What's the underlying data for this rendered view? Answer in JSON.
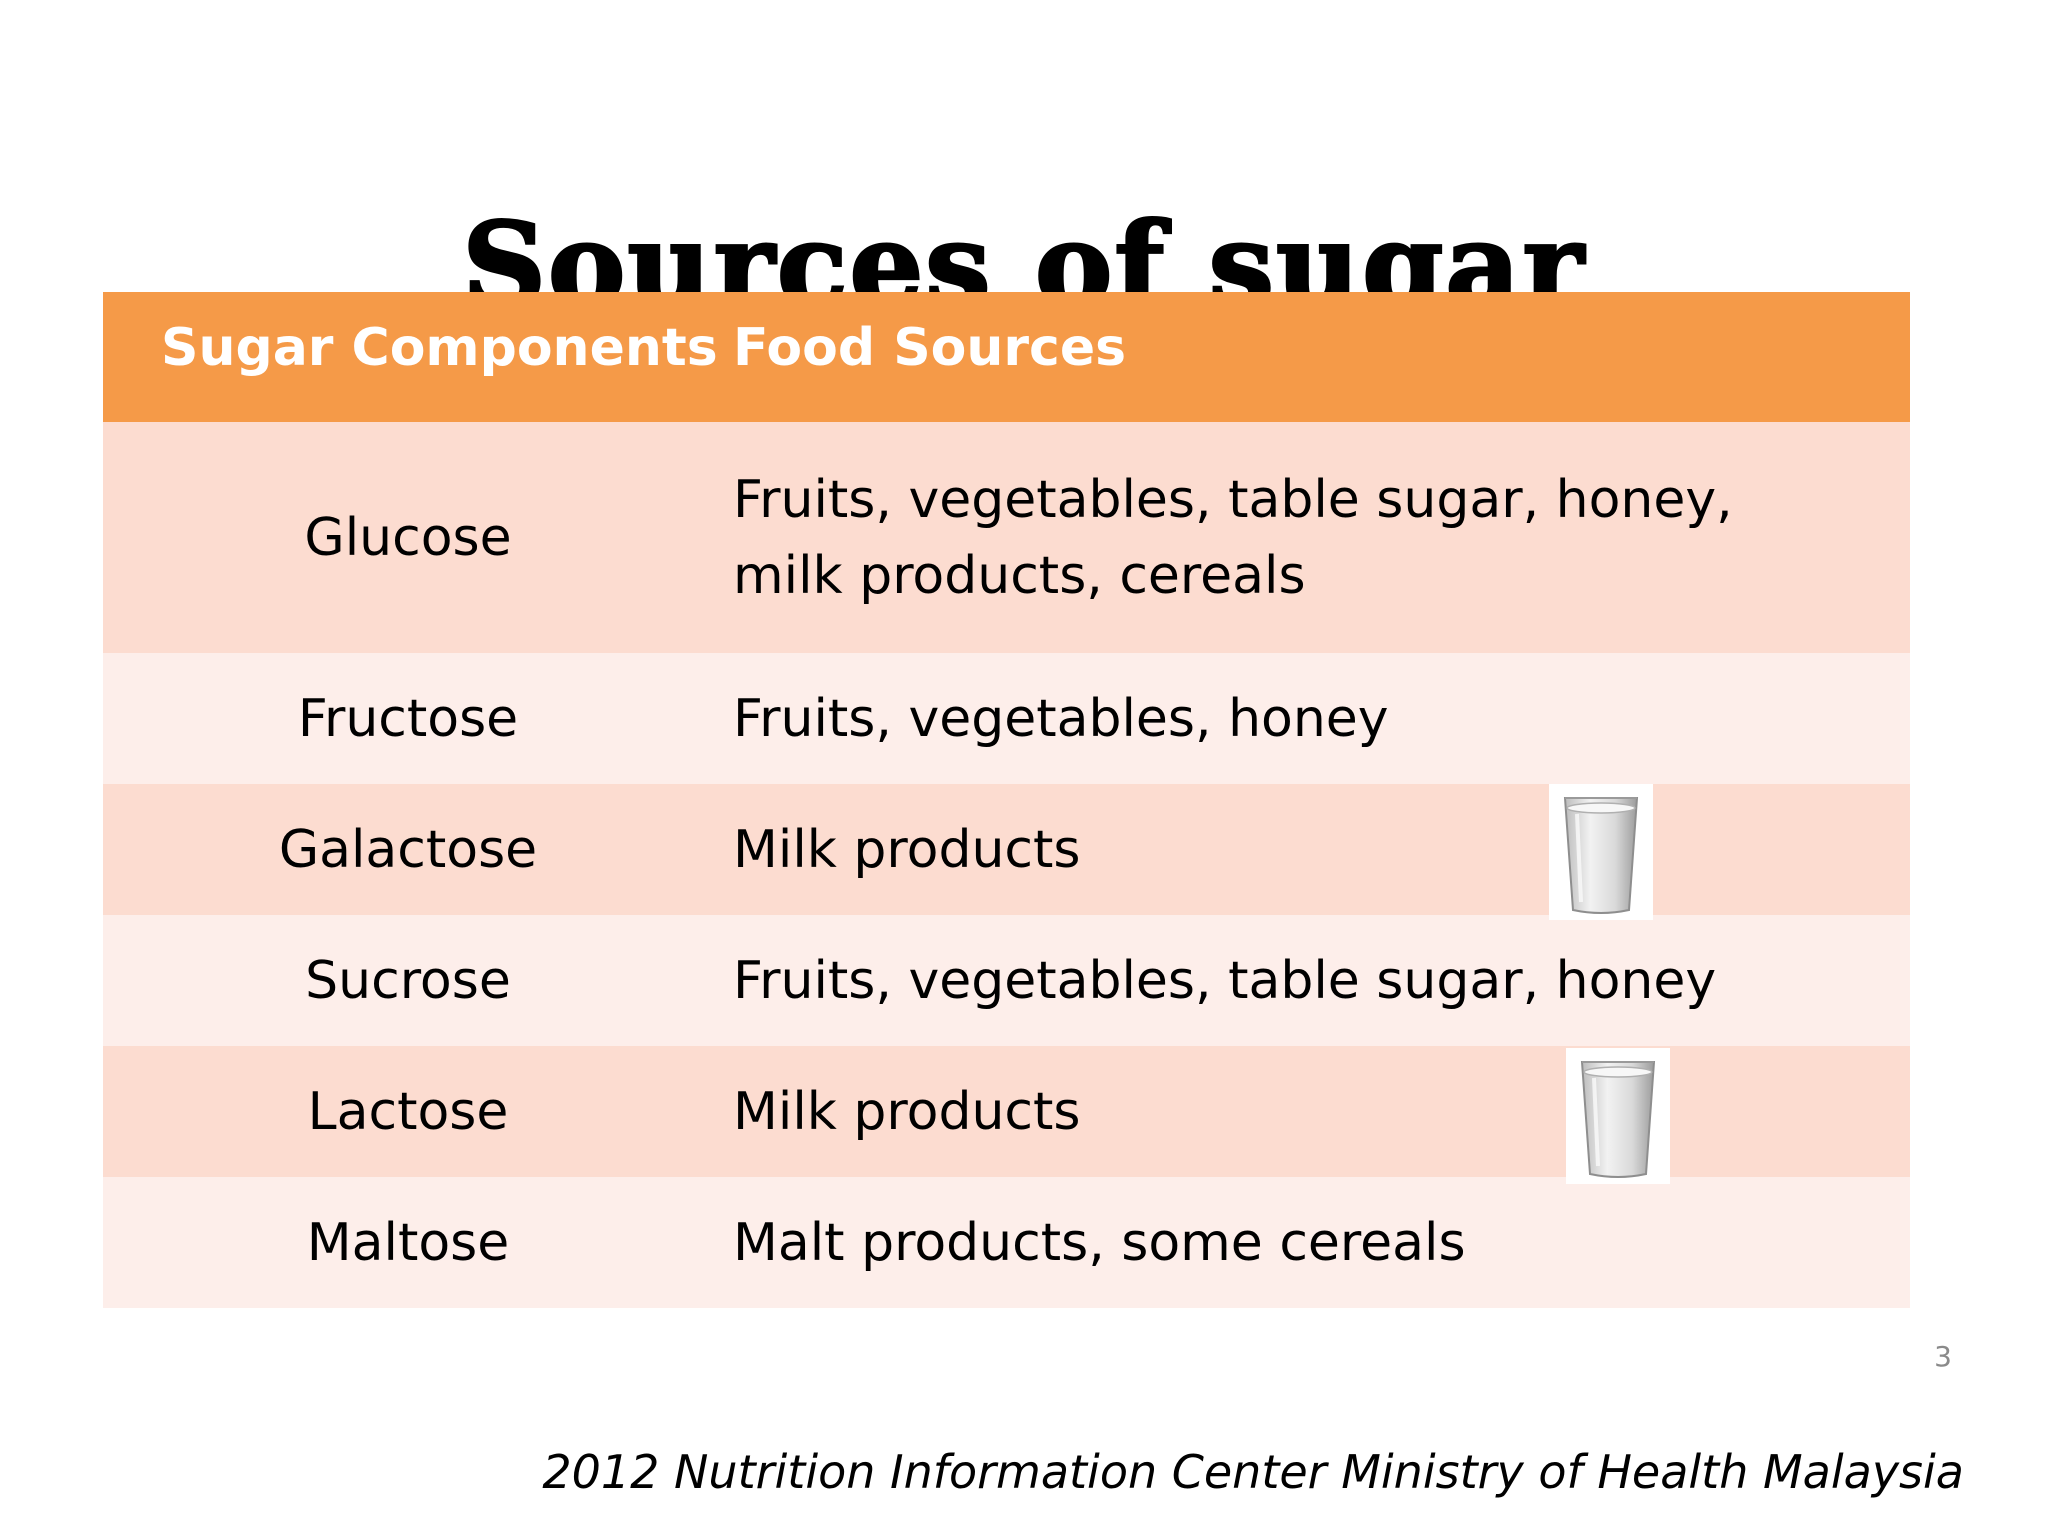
{
  "title": "Sources of sugar",
  "table": {
    "headers": {
      "component": "Sugar Components",
      "source": "Food Sources"
    },
    "rows": [
      {
        "component": "Glucose",
        "source": "Fruits, vegetables, table sugar, honey, milk products, cereals"
      },
      {
        "component": "Fructose",
        "source": "Fruits, vegetables, honey"
      },
      {
        "component": "Galactose",
        "source": "Milk products",
        "icon": "milk-glass-icon"
      },
      {
        "component": "Sucrose",
        "source": "Fruits, vegetables, table sugar, honey"
      },
      {
        "component": "Lactose",
        "source": "Milk products",
        "icon": "milk-glass-icon"
      },
      {
        "component": "Maltose",
        "source": "Malt products, some cereals"
      }
    ]
  },
  "page_number": "3",
  "footer": "2012 Nutrition Information Center Ministry of Health Malaysia",
  "colors": {
    "header_bg": "#f59a48",
    "row_odd": "#fcdcd0",
    "row_even": "#fdeeea"
  }
}
